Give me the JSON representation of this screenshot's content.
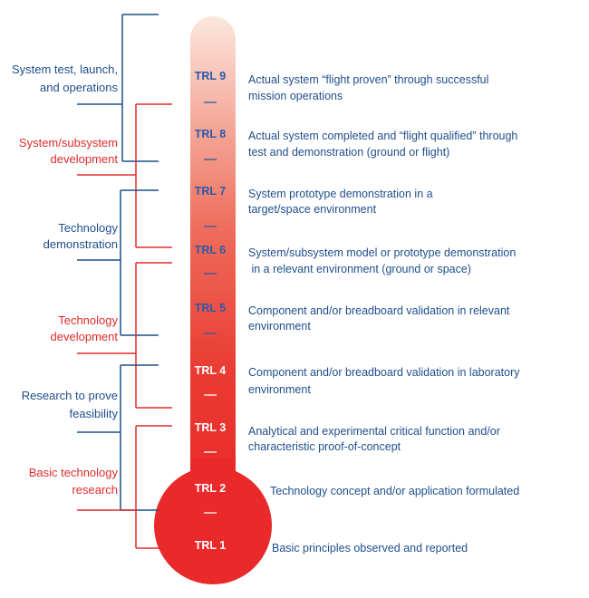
{
  "colors": {
    "blue": "#1f4e8c",
    "red": "#e02b2b",
    "bulb_red": "#ea2a2a",
    "tube_top": "#fbe7dc",
    "trl_light_text": "#2a5aa8",
    "trl_dark_text": "#ffffff"
  },
  "phases": [
    {
      "lines": [
        "System test, launch,",
        "and operations"
      ],
      "color": "blue"
    },
    {
      "lines": [
        "System/subsystem",
        "development"
      ],
      "color": "red"
    },
    {
      "lines": [
        "Technology",
        "demonstration"
      ],
      "color": "blue"
    },
    {
      "lines": [
        "Technology",
        "development"
      ],
      "color": "red"
    },
    {
      "lines": [
        "Research to prove",
        "feasibility"
      ],
      "color": "blue"
    },
    {
      "lines": [
        "Basic technology",
        "research"
      ],
      "color": "red"
    }
  ],
  "levels": [
    {
      "label": "TRL 9",
      "description": [
        "Actual system “flight proven” through successful",
        "mission operations"
      ]
    },
    {
      "label": "TRL 8",
      "description": [
        "Actual system completed and “flight qualified” through",
        "test and demonstration (ground or flight)"
      ]
    },
    {
      "label": "TRL 7",
      "description": [
        "System prototype demonstration in a",
        "target/space environment"
      ]
    },
    {
      "label": "TRL 6",
      "description": [
        "System/subsystem model or prototype demonstration",
        " in a relevant environment (ground or space)"
      ]
    },
    {
      "label": "TRL 5",
      "description": [
        "Component and/or breadboard validation in relevant",
        "environment"
      ]
    },
    {
      "label": "TRL 4",
      "description": [
        "Component and/or breadboard validation in laboratory",
        "environment"
      ]
    },
    {
      "label": "TRL 3",
      "description": [
        "Analytical and experimental critical function and/or",
        "characteristic proof-of-concept"
      ]
    },
    {
      "label": "TRL 2",
      "description": [
        "Technology concept and/or application formulated"
      ]
    },
    {
      "label": "TRL 1",
      "description": [
        "Basic principles observed and reported"
      ]
    }
  ]
}
